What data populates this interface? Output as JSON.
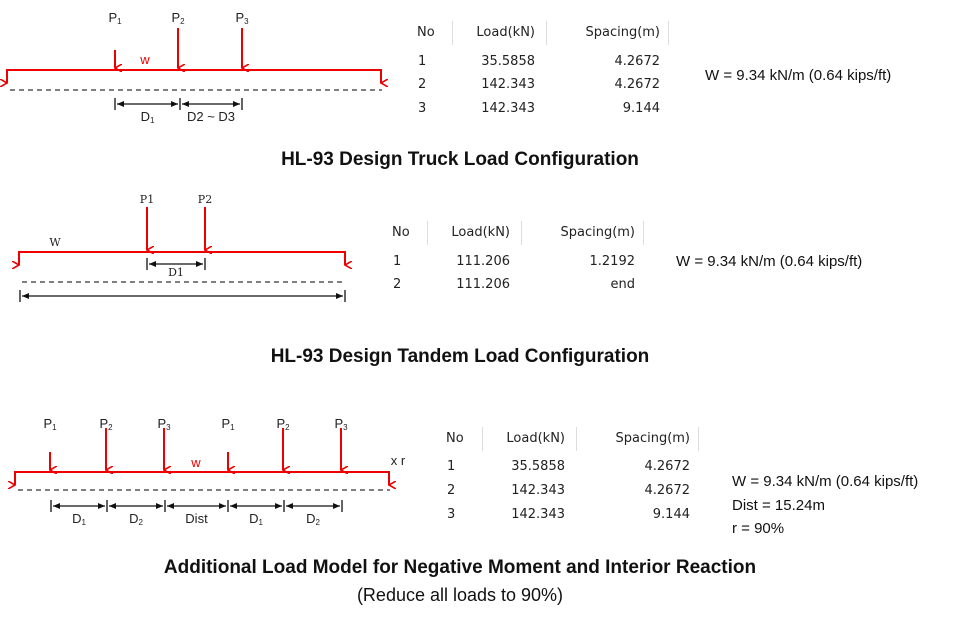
{
  "colors": {
    "load": "#ee0000",
    "beam_outline": "#333333"
  },
  "truck": {
    "caption": "HL-93 Design Truck Load Configuration",
    "diagram": {
      "loads": [
        "P1",
        "P2",
        "P3"
      ],
      "w": "w",
      "dims": [
        "D1",
        "D2 ~ D3"
      ]
    },
    "table": {
      "headers": [
        "No",
        "Load(kN)",
        "Spacing(m)"
      ],
      "rows": [
        [
          "1",
          "35.5858",
          "4.2672"
        ],
        [
          "2",
          "142.343",
          "4.2672"
        ],
        [
          "3",
          "142.343",
          "9.144"
        ]
      ]
    },
    "note": "W = 9.34 kN/m (0.64 kips/ft)"
  },
  "tandem": {
    "caption": "HL-93 Design Tandem Load Configuration",
    "diagram": {
      "loads": [
        "P1",
        "P2"
      ],
      "w": "W",
      "dims": [
        "D1"
      ]
    },
    "table": {
      "headers": [
        "No",
        "Load(kN)",
        "Spacing(m)"
      ],
      "rows": [
        [
          "1",
          "111.206",
          "1.2192"
        ],
        [
          "2",
          "111.206",
          "end"
        ]
      ]
    },
    "note": "W = 9.34 kN/m (0.64 kips/ft)"
  },
  "additional": {
    "caption": "Additional Load Model for Negative Moment and Interior Reaction",
    "subcaption": "(Reduce all loads to 90%)",
    "diagram": {
      "loads": [
        "P1",
        "P2",
        "P3",
        "P1",
        "P2",
        "P3"
      ],
      "w": "w",
      "factor": "x r",
      "dims": [
        "D1",
        "D2",
        "Dist",
        "D1",
        "D2"
      ]
    },
    "table": {
      "headers": [
        "No",
        "Load(kN)",
        "Spacing(m)"
      ],
      "rows": [
        [
          "1",
          "35.5858",
          "4.2672"
        ],
        [
          "2",
          "142.343",
          "4.2672"
        ],
        [
          "3",
          "142.343",
          "9.144"
        ]
      ]
    },
    "notes": [
      "W = 9.34 kN/m (0.64 kips/ft)",
      "Dist = 15.24m",
      "r = 90%"
    ]
  }
}
